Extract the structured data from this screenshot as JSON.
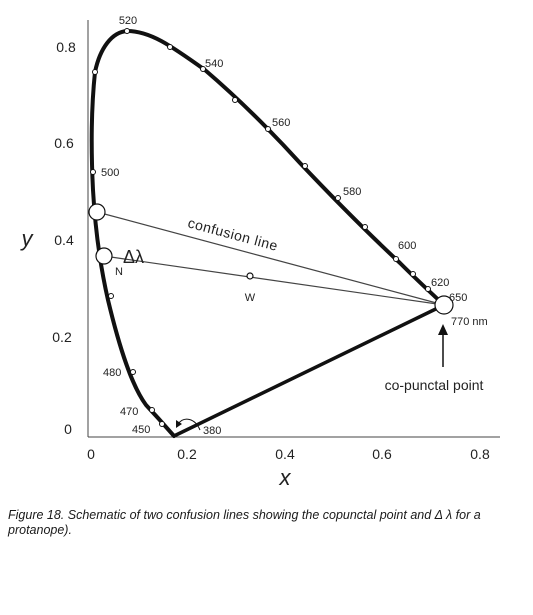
{
  "figure": {
    "x_axis_title": "x",
    "y_axis_title": "y",
    "x_ticks": [
      "0",
      "0.2",
      "0.4",
      "0.6",
      "0.8"
    ],
    "y_ticks": [
      "0",
      "0.2",
      "0.4",
      "0.6",
      "0.8"
    ],
    "wavelength_labels": {
      "w380": "380",
      "w450": "450",
      "w470": "470",
      "w480": "480",
      "w500": "500",
      "w520": "520",
      "w540": "540",
      "w560": "560",
      "w580": "580",
      "w600": "600",
      "w620": "620",
      "w650": "650",
      "w770": "770 nm"
    },
    "confusion_line_label": "confusion line",
    "delta_lambda_label": "Δλ",
    "n_label": "N",
    "w_label": "W",
    "copunctal_label": "co-punctal point"
  },
  "caption": "Figure 18. Schematic of two confusion lines showing the copunctal point and Δ λ for a protanope)."
}
